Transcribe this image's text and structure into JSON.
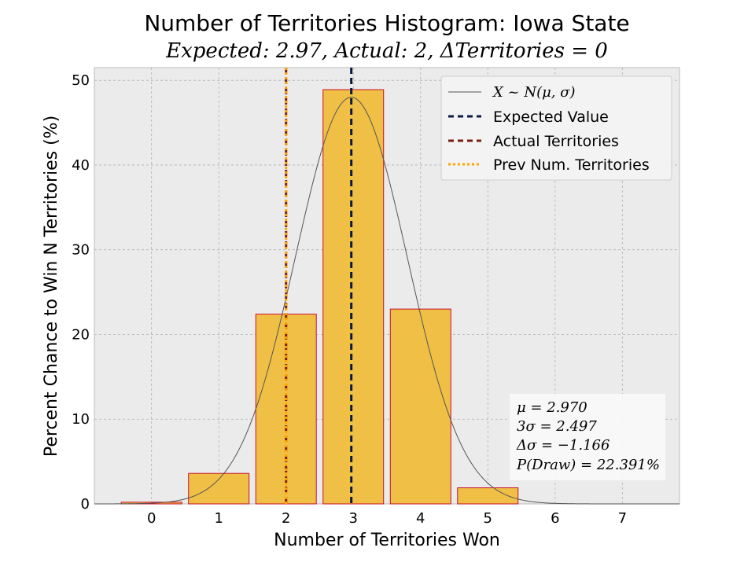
{
  "chart_data": {
    "type": "bar",
    "title": "Number of Territories Histogram: Iowa State",
    "subtitle": "Expected: 2.97, Actual: 2, ΔTerritories = 0",
    "xlabel": "Number of Territories Won",
    "ylabel": "Percent Chance to Win N Territories (%)",
    "categories": [
      0,
      1,
      2,
      3,
      4,
      5,
      6,
      7
    ],
    "values": [
      0.2,
      3.6,
      22.4,
      48.9,
      23.0,
      1.9,
      0.0,
      0.0
    ],
    "xlim": [
      -0.85,
      7.85
    ],
    "ylim": [
      0,
      51.5
    ],
    "yticks": [
      0,
      10,
      20,
      30,
      40,
      50
    ],
    "grid": true,
    "legend_position": "top-right",
    "colors": {
      "bar_fill": "#f0bf45",
      "bar_edge": "#c8102e",
      "axes_bg": "#ebebeb",
      "grid": "#b0b0b0",
      "normal_curve": "#555555",
      "expected_line": "#0b1a40",
      "actual_line": "#7a1f0f",
      "prev_line": "#ffa500"
    },
    "normal_curve": {
      "mu": 2.97,
      "sigma": 0.8323,
      "peak": 48.0
    },
    "vlines": [
      {
        "name": "Expected Value",
        "x": 2.97,
        "style": "dashed",
        "color_key": "expected_line"
      },
      {
        "name": "Actual Territories",
        "x": 2,
        "style": "dashed",
        "color_key": "actual_line"
      },
      {
        "name": "Prev Num. Territories",
        "x": 2,
        "style": "dotted",
        "color_key": "prev_line"
      }
    ],
    "legend": [
      {
        "label": "X ~ N(μ, σ)",
        "style": "curve"
      },
      {
        "label": "Expected Value",
        "style": "expected"
      },
      {
        "label": "Actual Territories",
        "style": "actual"
      },
      {
        "label": "Prev Num. Territories",
        "style": "prev"
      }
    ],
    "stats": [
      "μ = 2.970",
      "3σ = 2.497",
      "Δσ = −1.166",
      "P(Draw) = 22.391%"
    ]
  }
}
